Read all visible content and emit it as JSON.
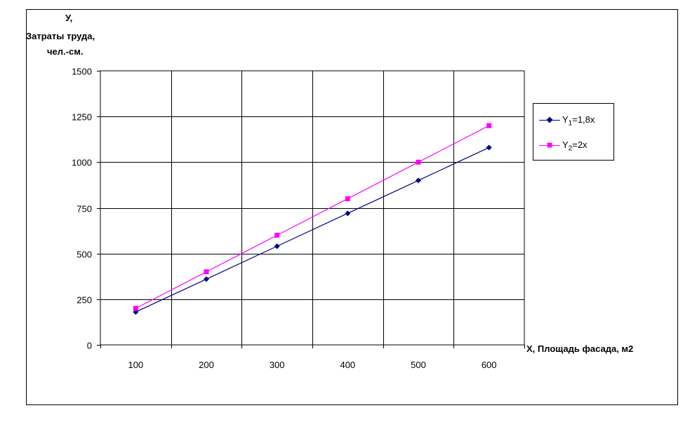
{
  "chart_data": {
    "type": "line",
    "ylabel_lines": [
      "У,",
      "Затраты труда,",
      "чел.-см."
    ],
    "xlabel": "Х, Площадь фасада, м2",
    "categories": [
      "100",
      "200",
      "300",
      "400",
      "500",
      "600"
    ],
    "x": [
      100,
      200,
      300,
      400,
      500,
      600
    ],
    "yticks": [
      0,
      250,
      500,
      750,
      1000,
      1250,
      1500
    ],
    "ylim": [
      0,
      1500
    ],
    "grid": true,
    "legend_position": "right",
    "series": [
      {
        "name_main": "Y",
        "name_sub": "1",
        "name_rest": "=1,8x",
        "color": "#000080",
        "marker": "diamond",
        "values": [
          180,
          360,
          540,
          720,
          900,
          1080
        ]
      },
      {
        "name_main": "Y",
        "name_sub": "2",
        "name_rest": "=2x",
        "color": "#ff00ff",
        "marker": "square",
        "values": [
          200,
          400,
          600,
          800,
          1000,
          1200
        ]
      }
    ]
  }
}
